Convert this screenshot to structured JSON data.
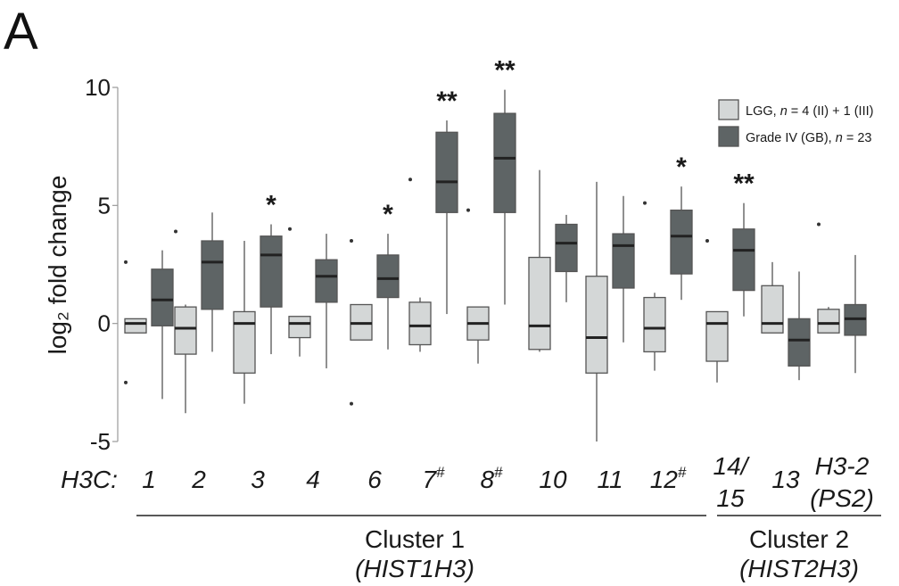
{
  "panel_label": "A",
  "colors": {
    "lgg": "#d4d7d7",
    "gb": "#5e6465",
    "median": "#222222",
    "whisker": "#555555"
  },
  "chart_data": {
    "type": "box",
    "ylabel": "log₂ fold change",
    "ylim": [
      -5,
      10
    ],
    "yticks": [
      -5,
      0,
      5,
      10
    ],
    "grid": false,
    "legend_position": "top-right",
    "series_names": [
      "LGG, n = 4 (II) + 1 (III)",
      "Grade IV (GB), n = 23"
    ],
    "gene_prefix": "H3C:",
    "categories": [
      "1",
      "2",
      "3",
      "4",
      "6",
      "7#",
      "8#",
      "10",
      "11",
      "12#",
      "14/15",
      "13",
      "H3-2 (PS2)"
    ],
    "significance": [
      "",
      "",
      "*",
      "",
      "*",
      "**",
      "**",
      "",
      "",
      "*",
      "**",
      "",
      ""
    ],
    "clusters": [
      {
        "name": "Cluster 1",
        "subtitle": "(HIST1H3)",
        "from": 0,
        "to": 9
      },
      {
        "name": "Cluster 2",
        "subtitle": "(HIST2H3)",
        "from": 10,
        "to": 12
      }
    ],
    "series": [
      {
        "name": "LGG",
        "boxes": [
          {
            "min": -0.4,
            "q1": -0.4,
            "median": 0.0,
            "q3": 0.2,
            "max": 0.2,
            "outliers": [
              2.6,
              -2.5
            ]
          },
          {
            "min": -3.8,
            "q1": -1.3,
            "median": -0.2,
            "q3": 0.7,
            "max": 0.8,
            "outliers": [
              3.9
            ]
          },
          {
            "min": -3.4,
            "q1": -2.1,
            "median": 0.0,
            "q3": 0.5,
            "max": 3.5,
            "outliers": []
          },
          {
            "min": -1.4,
            "q1": -0.6,
            "median": 0.0,
            "q3": 0.3,
            "max": 0.3,
            "outliers": [
              4.0
            ]
          },
          {
            "min": -0.7,
            "q1": -0.7,
            "median": 0.0,
            "q3": 0.8,
            "max": 0.8,
            "outliers": [
              3.5,
              -3.4
            ]
          },
          {
            "min": -1.2,
            "q1": -0.9,
            "median": -0.1,
            "q3": 0.9,
            "max": 1.1,
            "outliers": [
              6.1
            ]
          },
          {
            "min": -1.7,
            "q1": -0.7,
            "median": 0.0,
            "q3": 0.7,
            "max": 0.7,
            "outliers": [
              4.8
            ]
          },
          {
            "min": -1.2,
            "q1": -1.1,
            "median": -0.1,
            "q3": 2.8,
            "max": 6.5,
            "outliers": []
          },
          {
            "min": -5.0,
            "q1": -2.1,
            "median": -0.6,
            "q3": 2.0,
            "max": 6.0,
            "outliers": []
          },
          {
            "min": -2.0,
            "q1": -1.2,
            "median": -0.2,
            "q3": 1.1,
            "max": 1.3,
            "outliers": [
              5.1
            ]
          },
          {
            "min": -2.5,
            "q1": -1.6,
            "median": 0.0,
            "q3": 0.5,
            "max": 0.5,
            "outliers": [
              3.5
            ]
          },
          {
            "min": -0.4,
            "q1": -0.4,
            "median": 0.0,
            "q3": 1.6,
            "max": 2.6,
            "outliers": []
          },
          {
            "min": -0.4,
            "q1": -0.4,
            "median": 0.0,
            "q3": 0.6,
            "max": 0.7,
            "outliers": [
              4.2
            ]
          }
        ]
      },
      {
        "name": "Grade IV (GB)",
        "boxes": [
          {
            "min": -3.2,
            "q1": -0.1,
            "median": 1.0,
            "q3": 2.3,
            "max": 3.1,
            "outliers": []
          },
          {
            "min": -1.2,
            "q1": 0.6,
            "median": 2.6,
            "q3": 3.5,
            "max": 4.7,
            "outliers": []
          },
          {
            "min": -1.3,
            "q1": 0.7,
            "median": 2.9,
            "q3": 3.7,
            "max": 4.2,
            "outliers": []
          },
          {
            "min": -1.9,
            "q1": 0.9,
            "median": 2.0,
            "q3": 2.7,
            "max": 3.8,
            "outliers": []
          },
          {
            "min": -1.1,
            "q1": 1.1,
            "median": 1.9,
            "q3": 2.9,
            "max": 3.8,
            "outliers": []
          },
          {
            "min": 0.4,
            "q1": 4.7,
            "median": 6.0,
            "q3": 8.1,
            "max": 8.6,
            "outliers": []
          },
          {
            "min": 0.8,
            "q1": 4.7,
            "median": 7.0,
            "q3": 8.9,
            "max": 9.9,
            "outliers": []
          },
          {
            "min": 0.9,
            "q1": 2.2,
            "median": 3.4,
            "q3": 4.2,
            "max": 4.6,
            "outliers": []
          },
          {
            "min": -0.8,
            "q1": 1.5,
            "median": 3.3,
            "q3": 3.8,
            "max": 5.4,
            "outliers": []
          },
          {
            "min": 1.0,
            "q1": 2.1,
            "median": 3.7,
            "q3": 4.8,
            "max": 5.8,
            "outliers": []
          },
          {
            "min": 0.3,
            "q1": 1.4,
            "median": 3.1,
            "q3": 4.0,
            "max": 5.1,
            "outliers": []
          },
          {
            "min": -2.4,
            "q1": -1.8,
            "median": -0.7,
            "q3": 0.2,
            "max": 2.2,
            "outliers": []
          },
          {
            "min": -2.1,
            "q1": -0.5,
            "median": 0.2,
            "q3": 0.8,
            "max": 2.9,
            "outliers": []
          }
        ]
      }
    ]
  }
}
